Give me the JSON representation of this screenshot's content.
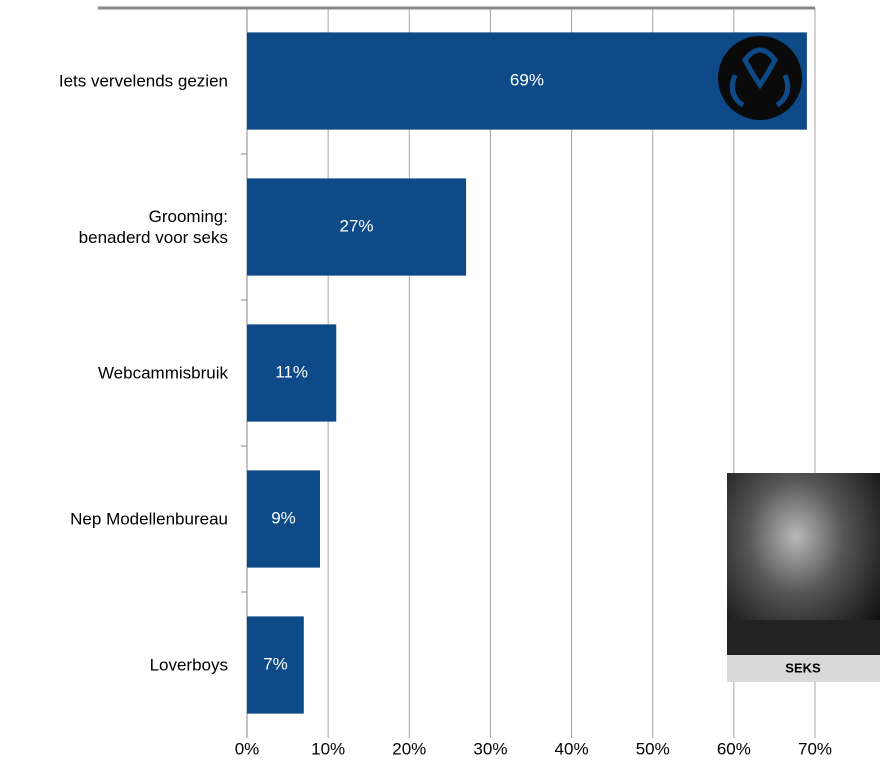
{
  "chart_data": {
    "type": "bar",
    "orientation": "horizontal",
    "categories": [
      "Iets vervelends gezien",
      "Grooming:\nbenaderd voor seks",
      "Webcammisbruik",
      "Nep Modellenbureau",
      "Loverboys"
    ],
    "values": [
      69,
      27,
      11,
      9,
      7
    ],
    "value_labels": [
      "69%",
      "27%",
      "11%",
      "9%",
      "7%"
    ],
    "color": "#0e4a88",
    "xlim": [
      0,
      70
    ],
    "xticks": [
      {
        "value": 0,
        "label": "0%"
      },
      {
        "value": 10,
        "label": "10%"
      },
      {
        "value": 20,
        "label": "20%"
      },
      {
        "value": 30,
        "label": "30%"
      },
      {
        "value": 40,
        "label": "40%"
      },
      {
        "value": 50,
        "label": "50%"
      },
      {
        "value": 60,
        "label": "60%"
      },
      {
        "value": 70,
        "label": "70%"
      }
    ],
    "grid": true
  },
  "photo": {
    "caption": "SEKS"
  }
}
